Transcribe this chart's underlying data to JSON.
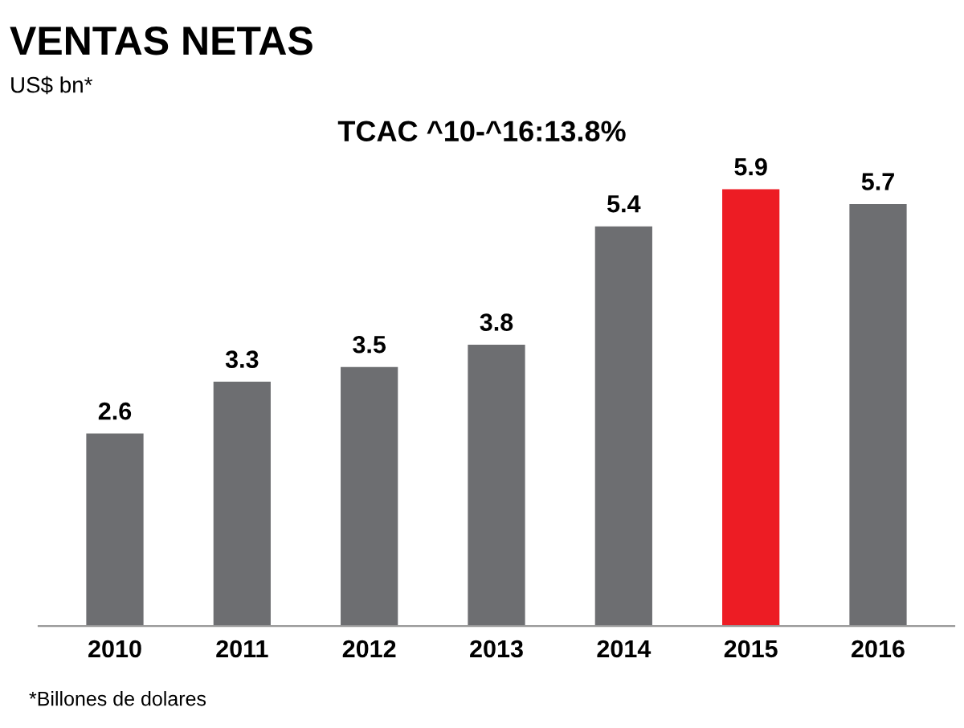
{
  "chart_data": {
    "type": "bar",
    "title": "VENTAS NETAS",
    "subtitle": "US$ bn*",
    "categories": [
      "2010",
      "2011",
      "2012",
      "2013",
      "2014",
      "2015",
      "2016"
    ],
    "values": [
      2.6,
      3.3,
      3.5,
      3.8,
      5.4,
      5.9,
      5.7
    ],
    "colors": [
      "#6d6e71",
      "#6d6e71",
      "#6d6e71",
      "#6d6e71",
      "#6d6e71",
      "#ed1c24",
      "#6d6e71"
    ],
    "data_labels": true,
    "annotations": [
      "TCAC ^10-^16:13.8%",
      "*Billones de dolares"
    ]
  }
}
